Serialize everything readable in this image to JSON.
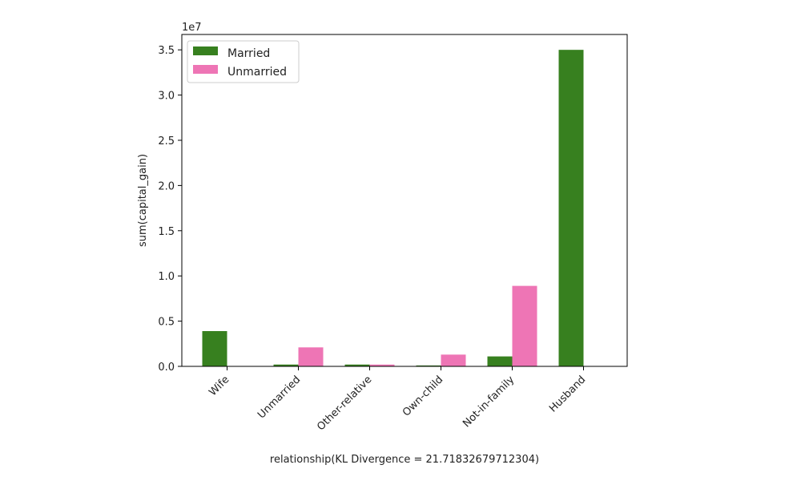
{
  "chart_data": {
    "type": "bar",
    "categories": [
      "Wife",
      "Unmarried",
      "Other-relative",
      "Own-child",
      "Not-in-family",
      "Husband"
    ],
    "series": [
      {
        "name": "Married",
        "values": [
          3900000,
          200000,
          200000,
          100000,
          1100000,
          35000000
        ],
        "color": "#37801f"
      },
      {
        "name": "Unmarried",
        "values": [
          0,
          2100000,
          200000,
          1300000,
          8900000,
          0
        ],
        "color": "#ee75b5"
      }
    ],
    "title": "",
    "xlabel": "relationship(KL Divergence = 21.71832679712304)",
    "ylabel": "sum(capital_gain)",
    "y_offset_label": "1e7",
    "ylim": [
      0,
      36700000
    ],
    "yticks": [
      0,
      5000000,
      10000000,
      15000000,
      20000000,
      25000000,
      30000000,
      35000000
    ],
    "ytick_labels": [
      "0.0",
      "0.5",
      "1.0",
      "1.5",
      "2.0",
      "2.5",
      "3.0",
      "3.5"
    ],
    "grid": false,
    "legend_position": "top-left"
  }
}
